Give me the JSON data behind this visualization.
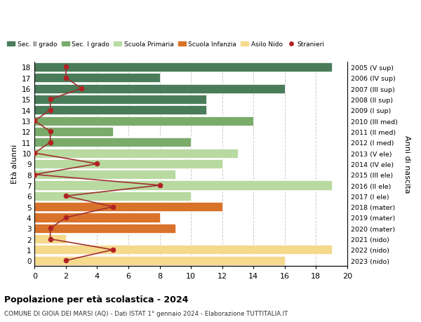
{
  "ages": [
    18,
    17,
    16,
    15,
    14,
    13,
    12,
    11,
    10,
    9,
    8,
    7,
    6,
    5,
    4,
    3,
    2,
    1,
    0
  ],
  "years": [
    "2005 (V sup)",
    "2006 (IV sup)",
    "2007 (III sup)",
    "2008 (II sup)",
    "2009 (I sup)",
    "2010 (III med)",
    "2011 (II med)",
    "2012 (I med)",
    "2013 (V ele)",
    "2014 (IV ele)",
    "2015 (III ele)",
    "2016 (II ele)",
    "2017 (I ele)",
    "2018 (mater)",
    "2019 (mater)",
    "2020 (mater)",
    "2021 (nido)",
    "2022 (nido)",
    "2023 (nido)"
  ],
  "bar_values": [
    19,
    8,
    16,
    11,
    11,
    14,
    5,
    10,
    13,
    12,
    9,
    19,
    10,
    12,
    8,
    9,
    2,
    19,
    16
  ],
  "bar_colors": [
    "#4a7c59",
    "#4a7c59",
    "#4a7c59",
    "#4a7c59",
    "#4a7c59",
    "#7aab6b",
    "#7aab6b",
    "#7aab6b",
    "#b8d9a0",
    "#b8d9a0",
    "#b8d9a0",
    "#b8d9a0",
    "#b8d9a0",
    "#d9722a",
    "#d9722a",
    "#d9722a",
    "#f5d98c",
    "#f5d98c",
    "#f5d98c"
  ],
  "stranieri_values": [
    2,
    2,
    3,
    1,
    1,
    0,
    1,
    1,
    0,
    4,
    0,
    8,
    2,
    5,
    2,
    1,
    1,
    5,
    2
  ],
  "ylabel_left": "Età alunni",
  "ylabel_right": "Anni di nascita",
  "xlim": [
    0,
    20
  ],
  "xticks": [
    0,
    2,
    4,
    6,
    8,
    10,
    12,
    14,
    16,
    18,
    20
  ],
  "title": "Popolazione per età scolastica - 2024",
  "subtitle": "COMUNE DI GIOIA DEI MARSI (AQ) - Dati ISTAT 1° gennaio 2024 - Elaborazione TUTTITALIA.IT",
  "legend_labels": [
    "Sec. II grado",
    "Sec. I grado",
    "Scuola Primaria",
    "Scuola Infanzia",
    "Asilo Nido",
    "Stranieri"
  ],
  "legend_colors": [
    "#4a7c59",
    "#7aab6b",
    "#b8d9a0",
    "#d9722a",
    "#f5d98c",
    "#b22222"
  ],
  "background_color": "#ffffff",
  "grid_color": "#cccccc",
  "stranieri_color": "#b22222",
  "stranieri_line_color": "#a03030"
}
